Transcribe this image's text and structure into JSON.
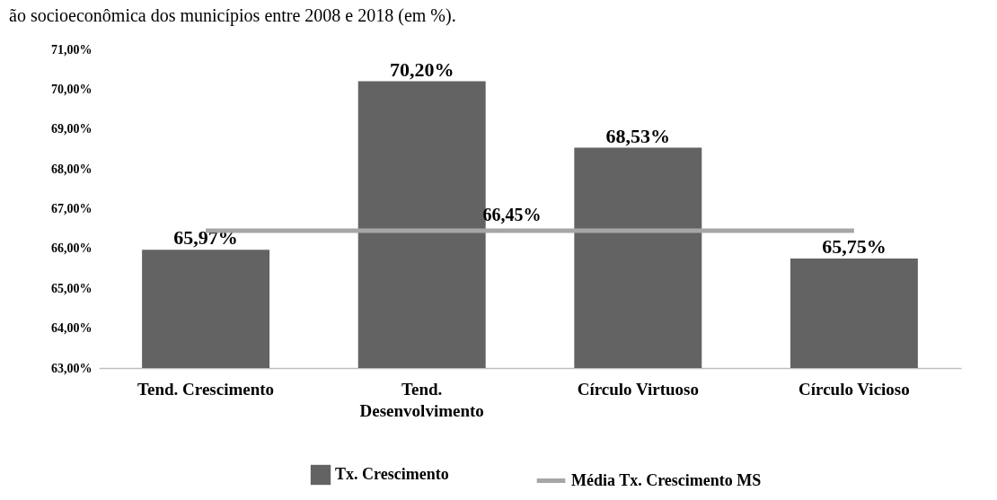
{
  "chart_data": {
    "type": "bar",
    "title": "ão socioeconômica dos municípios entre 2008 e 2018 (em %).",
    "categories": [
      "Tend. Crescimento",
      "Tend. Desenvolvimento",
      "Círculo Virtuoso",
      "Círculo Vicioso"
    ],
    "series": [
      {
        "name": "Tx. Crescimento",
        "color": "#636363",
        "values": [
          65.97,
          70.2,
          68.53,
          65.75
        ],
        "value_labels": [
          "65,97%",
          "70,20%",
          "68,53%",
          "65,75%"
        ]
      },
      {
        "name": "Média Tx. Crescimento MS",
        "type": "line",
        "color": "#a6a6a6",
        "values": [
          66.45,
          66.45,
          66.45,
          66.45
        ]
      }
    ],
    "annotations": [
      {
        "text": "66,45%",
        "y": 66.45
      }
    ],
    "ylim": [
      63,
      71
    ],
    "yticks": [
      {
        "value": 63,
        "label": "63,00%"
      },
      {
        "value": 64,
        "label": "64,00%"
      },
      {
        "value": 65,
        "label": "65,00%"
      },
      {
        "value": 66,
        "label": "66,00%"
      },
      {
        "value": 67,
        "label": "67,00%"
      },
      {
        "value": 68,
        "label": "68,00%"
      },
      {
        "value": 69,
        "label": "69,00%"
      },
      {
        "value": 70,
        "label": "70,00%"
      },
      {
        "value": 71,
        "label": "71,00%"
      }
    ],
    "grid": false,
    "legend": "bottom",
    "marker": "none",
    "line_style": "solid"
  }
}
